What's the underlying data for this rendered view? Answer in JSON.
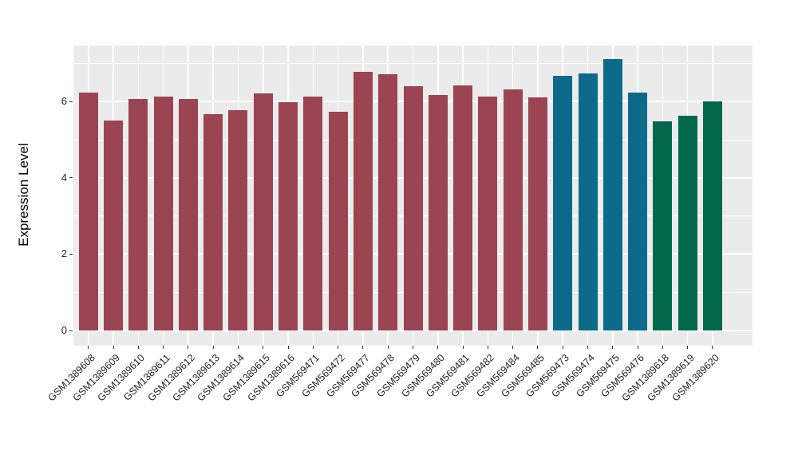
{
  "chart_data": {
    "type": "bar",
    "title": "",
    "xlabel": "",
    "ylabel": "Expression Level",
    "ylim": [
      0,
      7.47
    ],
    "yticks": [
      0,
      2,
      4,
      6
    ],
    "yticks_minor": [
      1,
      3,
      5,
      7
    ],
    "grid": "on",
    "legend": "none",
    "categories": [
      "GSM1389608",
      "GSM1389609",
      "GSM1389610",
      "GSM1389611",
      "GSM1389612",
      "GSM1389613",
      "GSM1389614",
      "GSM1389615",
      "GSM1389616",
      "GSM569471",
      "GSM569472",
      "GSM569477",
      "GSM569478",
      "GSM569479",
      "GSM569480",
      "GSM569481",
      "GSM569482",
      "GSM569484",
      "GSM569485",
      "GSM569473",
      "GSM569474",
      "GSM569475",
      "GSM569476",
      "GSM1389618",
      "GSM1389619",
      "GSM1389620"
    ],
    "values": [
      6.24,
      5.51,
      6.06,
      6.13,
      6.07,
      5.67,
      5.78,
      6.22,
      5.98,
      6.13,
      5.73,
      6.77,
      6.72,
      6.4,
      6.17,
      6.42,
      6.13,
      6.31,
      6.1,
      6.68,
      6.74,
      7.12,
      6.23,
      5.48,
      5.63,
      6.0
    ],
    "bar_groups": [
      "group1",
      "group1",
      "group1",
      "group1",
      "group1",
      "group1",
      "group1",
      "group1",
      "group1",
      "group1",
      "group1",
      "group1",
      "group1",
      "group1",
      "group1",
      "group1",
      "group1",
      "group1",
      "group1",
      "group2",
      "group2",
      "group2",
      "group2",
      "group3",
      "group3",
      "group3"
    ],
    "group_palette": {
      "group1": "#9B4452",
      "group2": "#0C6A8A",
      "group3": "#02684B"
    },
    "colors": {
      "panel_bg": "#EBEBEB",
      "grid": "#FFFFFF",
      "tick_mark": "#333333",
      "tick_label": "#262626",
      "axis_title": "#000000"
    },
    "y_tick_labels": [
      "0",
      "2",
      "4",
      "6"
    ]
  }
}
